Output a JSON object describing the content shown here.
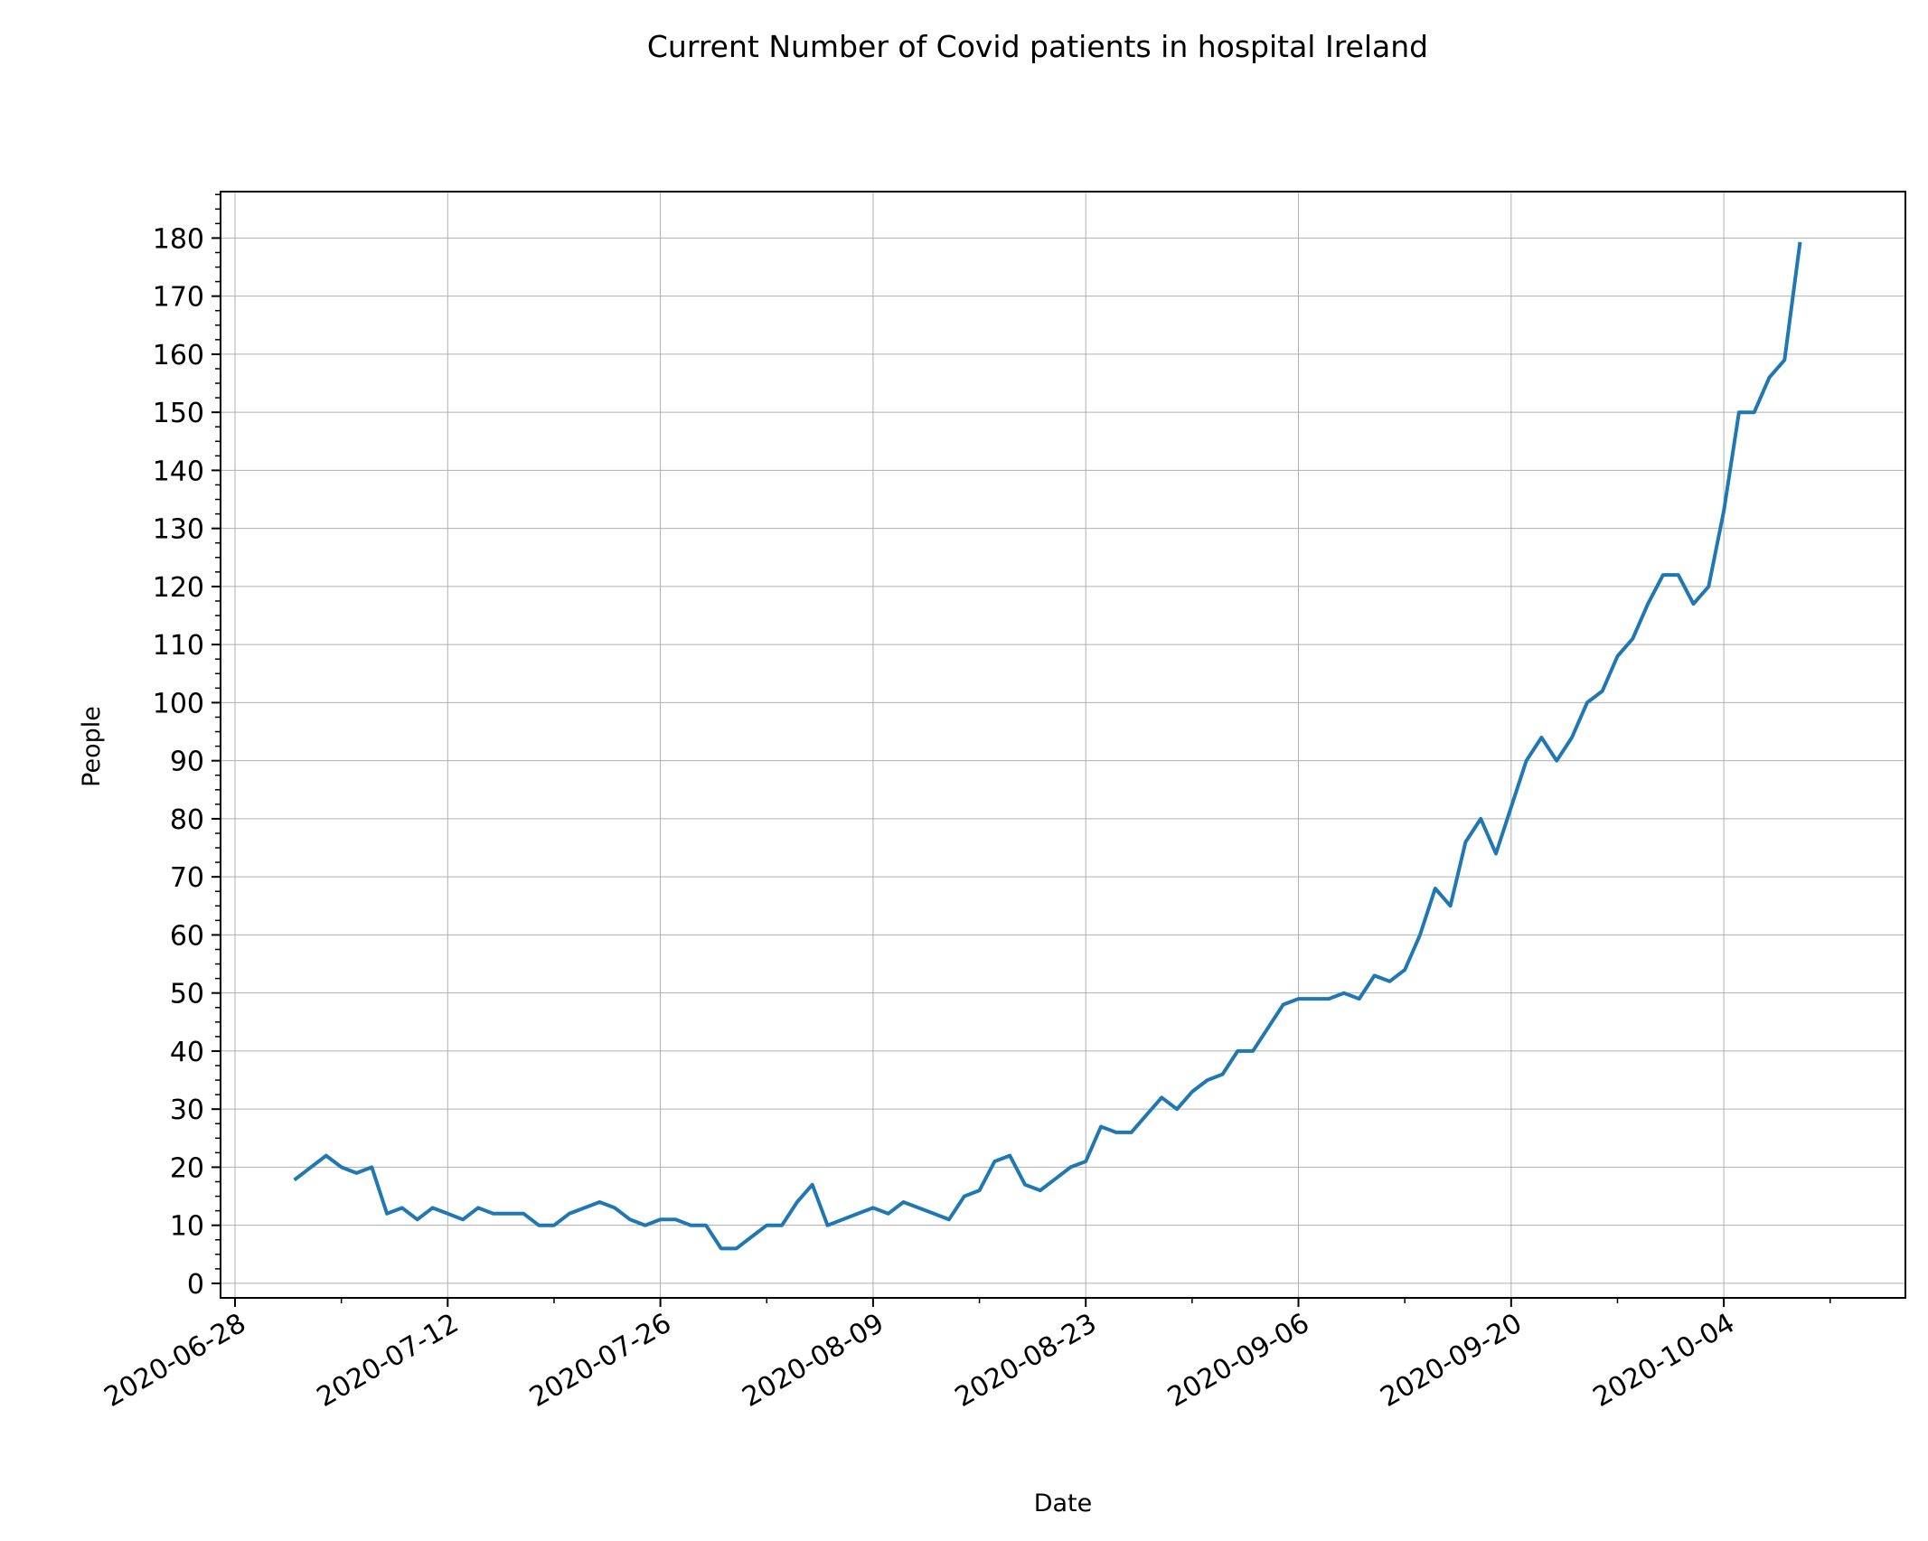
{
  "chart_data": {
    "type": "line",
    "title": "Current Number of Covid patients in hospital Ireland",
    "xlabel": "Date",
    "ylabel": "People",
    "ylim": [
      -2.5,
      188
    ],
    "xlim": [
      "2020-06-28",
      "2020-10-15"
    ],
    "y_ticks": [
      "0",
      "10",
      "20",
      "30",
      "40",
      "50",
      "60",
      "70",
      "80",
      "90",
      "100",
      "110",
      "120",
      "130",
      "140",
      "150",
      "160",
      "170",
      "180"
    ],
    "x_ticks": [
      "2020-06-28",
      "2020-07-12",
      "2020-07-26",
      "2020-08-09",
      "2020-08-23",
      "2020-09-06",
      "2020-09-20",
      "2020-10-04"
    ],
    "grid": true,
    "line_color": "#1f77b4",
    "series": [
      {
        "x": [
          "2020-07-02",
          "2020-07-03",
          "2020-07-04",
          "2020-07-05",
          "2020-07-06",
          "2020-07-07",
          "2020-07-08",
          "2020-07-09",
          "2020-07-10",
          "2020-07-11",
          "2020-07-12",
          "2020-07-13",
          "2020-07-14",
          "2020-07-15",
          "2020-07-16",
          "2020-07-17",
          "2020-07-18",
          "2020-07-19",
          "2020-07-20",
          "2020-07-21",
          "2020-07-22",
          "2020-07-23",
          "2020-07-24",
          "2020-07-25",
          "2020-07-26",
          "2020-07-27",
          "2020-07-28",
          "2020-07-29",
          "2020-07-30",
          "2020-07-31",
          "2020-08-01",
          "2020-08-02",
          "2020-08-03",
          "2020-08-04",
          "2020-08-05",
          "2020-08-06",
          "2020-08-07",
          "2020-08-08",
          "2020-08-09",
          "2020-08-10",
          "2020-08-11",
          "2020-08-12",
          "2020-08-13",
          "2020-08-14",
          "2020-08-15",
          "2020-08-16",
          "2020-08-17",
          "2020-08-18",
          "2020-08-19",
          "2020-08-20",
          "2020-08-21",
          "2020-08-22",
          "2020-08-23",
          "2020-08-24",
          "2020-08-25",
          "2020-08-26",
          "2020-08-27",
          "2020-08-28",
          "2020-08-29",
          "2020-08-30",
          "2020-08-31",
          "2020-09-01",
          "2020-09-02",
          "2020-09-03",
          "2020-09-04",
          "2020-09-05",
          "2020-09-06",
          "2020-09-07",
          "2020-09-08",
          "2020-09-09",
          "2020-09-10",
          "2020-09-11",
          "2020-09-12",
          "2020-09-13",
          "2020-09-14",
          "2020-09-15",
          "2020-09-16",
          "2020-09-17",
          "2020-09-18",
          "2020-09-19",
          "2020-09-20",
          "2020-09-21",
          "2020-09-22",
          "2020-09-23",
          "2020-09-24",
          "2020-09-25",
          "2020-09-26",
          "2020-09-27",
          "2020-09-28",
          "2020-09-29",
          "2020-09-30",
          "2020-10-01",
          "2020-10-02",
          "2020-10-03",
          "2020-10-04",
          "2020-10-05",
          "2020-10-06",
          "2020-10-07",
          "2020-10-08",
          "2020-10-09"
        ],
        "values": [
          18,
          20,
          22,
          20,
          19,
          20,
          12,
          13,
          11,
          13,
          12,
          11,
          13,
          12,
          12,
          12,
          10,
          10,
          12,
          13,
          14,
          13,
          11,
          10,
          11,
          11,
          10,
          10,
          6,
          6,
          8,
          10,
          10,
          14,
          17,
          10,
          11,
          12,
          13,
          12,
          14,
          13,
          12,
          11,
          15,
          16,
          21,
          22,
          17,
          16,
          18,
          20,
          21,
          27,
          26,
          26,
          29,
          32,
          30,
          33,
          35,
          36,
          40,
          40,
          44,
          48,
          49,
          49,
          49,
          50,
          49,
          53,
          52,
          54,
          60,
          68,
          65,
          76,
          80,
          74,
          82,
          90,
          94,
          90,
          94,
          100,
          102,
          108,
          111,
          117,
          122,
          122,
          117,
          120,
          133,
          150,
          150,
          156,
          159,
          179
        ]
      }
    ]
  }
}
